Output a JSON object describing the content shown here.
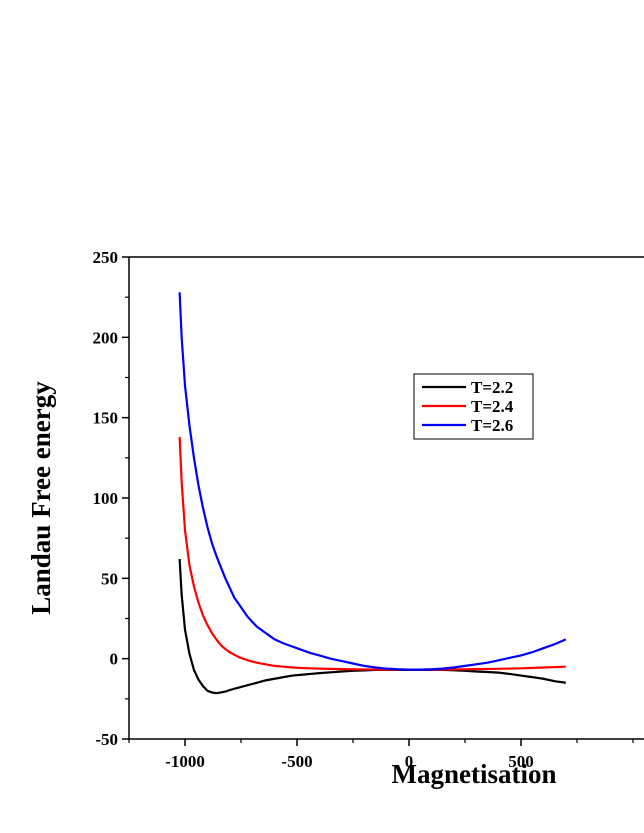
{
  "chart_data": {
    "type": "line",
    "title": "",
    "xlabel": "Magnetisation",
    "ylabel": "Landau Free energy",
    "xlim": [
      -1250,
      1250
    ],
    "ylim": [
      -50,
      250
    ],
    "xticks": [
      -1000,
      -500,
      0,
      500
    ],
    "yticks": [
      -50,
      0,
      50,
      100,
      150,
      200,
      250
    ],
    "grid": false,
    "legend_position": "upper-center",
    "series": [
      {
        "name": "T=2.2",
        "color": "#000000",
        "x": [
          -1024,
          -1015,
          -1000,
          -980,
          -960,
          -940,
          -920,
          -900,
          -880,
          -860,
          -840,
          -820,
          -800,
          -760,
          -720,
          -680,
          -640,
          -600,
          -560,
          -520,
          -480,
          -440,
          -400,
          -350,
          -300,
          -250,
          -200,
          -150,
          -100,
          -50,
          0,
          50,
          100,
          150,
          200,
          250,
          300,
          350,
          400,
          450,
          500,
          550,
          600,
          650,
          700
        ],
        "y": [
          62,
          40,
          18,
          3,
          -7,
          -13,
          -17,
          -20,
          -21,
          -21.5,
          -21,
          -20.5,
          -19.5,
          -18,
          -16.5,
          -15,
          -13.5,
          -12.5,
          -11.5,
          -10.5,
          -10,
          -9.5,
          -9,
          -8.5,
          -8,
          -7.5,
          -7.3,
          -7,
          -7,
          -7,
          -7,
          -7,
          -7,
          -7,
          -7.2,
          -7.5,
          -8,
          -8.3,
          -8.7,
          -9.5,
          -10.5,
          -11.5,
          -12.5,
          -14,
          -15
        ]
      },
      {
        "name": "T=2.4",
        "color": "#ff0000",
        "x": [
          -1024,
          -1015,
          -1000,
          -980,
          -960,
          -940,
          -920,
          -900,
          -880,
          -860,
          -840,
          -820,
          -800,
          -760,
          -720,
          -680,
          -640,
          -600,
          -560,
          -520,
          -480,
          -440,
          -400,
          -300,
          -200,
          -100,
          0,
          100,
          200,
          300,
          400,
          500,
          600,
          700
        ],
        "y": [
          138,
          110,
          80,
          58,
          45,
          35,
          27,
          21,
          16,
          12,
          8.5,
          6,
          4,
          1,
          -1,
          -2.5,
          -3.5,
          -4.5,
          -5,
          -5.5,
          -5.8,
          -6,
          -6.2,
          -6.5,
          -6.7,
          -6.8,
          -6.8,
          -6.8,
          -6.7,
          -6.5,
          -6.3,
          -6,
          -5.5,
          -5
        ]
      },
      {
        "name": "T=2.6",
        "color": "#0000ff",
        "x": [
          -1024,
          -1015,
          -1000,
          -980,
          -960,
          -940,
          -920,
          -900,
          -880,
          -860,
          -840,
          -820,
          -800,
          -780,
          -760,
          -740,
          -720,
          -700,
          -680,
          -660,
          -640,
          -620,
          -600,
          -560,
          -520,
          -480,
          -440,
          -400,
          -350,
          -300,
          -250,
          -200,
          -150,
          -100,
          -50,
          0,
          50,
          100,
          150,
          200,
          250,
          300,
          350,
          400,
          450,
          500,
          550,
          600,
          650,
          700
        ],
        "y": [
          228,
          200,
          170,
          145,
          125,
          108,
          94,
          82,
          72,
          64,
          57,
          50,
          44,
          38,
          34,
          30,
          26,
          23,
          20,
          18,
          16,
          14,
          12,
          9.5,
          7.5,
          5.5,
          3.5,
          2,
          0,
          -1.5,
          -3,
          -4.5,
          -5.5,
          -6.2,
          -6.6,
          -6.8,
          -6.8,
          -6.6,
          -6.2,
          -5.5,
          -4.5,
          -3.5,
          -2.5,
          -1,
          0.5,
          2,
          4,
          6.5,
          9,
          12
        ]
      }
    ]
  }
}
